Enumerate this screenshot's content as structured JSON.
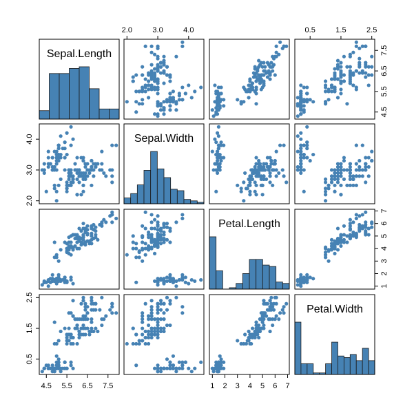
{
  "chart_data": {
    "type": "scatter",
    "plot_kind": "scatterplot-matrix",
    "point_color": "#4682B4",
    "bar_color": "#4682B4",
    "variables": [
      {
        "name": "Sepal.Length",
        "range": [
          4.3,
          7.9
        ],
        "ticks": [
          {
            "value": 4.5,
            "label": "4.5"
          },
          {
            "value": 5.5,
            "label": "5.5"
          },
          {
            "value": 6.5,
            "label": "6.5"
          },
          {
            "value": 7.5,
            "label": "7.5"
          }
        ],
        "histogram": {
          "breaks": [
            4.0,
            4.5,
            5.0,
            5.5,
            6.0,
            6.5,
            7.0,
            7.5,
            8.0
          ],
          "counts": [
            5,
            27,
            27,
            30,
            31,
            18,
            6,
            6
          ]
        }
      },
      {
        "name": "Sepal.Width",
        "range": [
          2.0,
          4.4
        ],
        "ticks": [
          {
            "value": 2.0,
            "label": "2.0"
          },
          {
            "value": 3.0,
            "label": "3.0"
          },
          {
            "value": 4.0,
            "label": "4.0"
          }
        ],
        "histogram": {
          "breaks": [
            2.0,
            2.2,
            2.4,
            2.6,
            2.8,
            3.0,
            3.2,
            3.4,
            3.6,
            3.8,
            4.0,
            4.2,
            4.4
          ],
          "counts": [
            4,
            7,
            13,
            23,
            36,
            24,
            18,
            10,
            9,
            3,
            2,
            1
          ]
        }
      },
      {
        "name": "Petal.Length",
        "range": [
          1.0,
          6.9
        ],
        "ticks": [
          {
            "value": 1,
            "label": "1"
          },
          {
            "value": 2,
            "label": "2"
          },
          {
            "value": 3,
            "label": "3"
          },
          {
            "value": 4,
            "label": "4"
          },
          {
            "value": 5,
            "label": "5"
          },
          {
            "value": 6,
            "label": "6"
          },
          {
            "value": 7,
            "label": "7"
          }
        ],
        "histogram": {
          "breaks": [
            1,
            1.5,
            2,
            2.5,
            3,
            3.5,
            4,
            4.5,
            5,
            5.5,
            6,
            6.5,
            7
          ],
          "counts": [
            37,
            13,
            0,
            1,
            4,
            11,
            21,
            21,
            17,
            16,
            5,
            4
          ]
        }
      },
      {
        "name": "Petal.Width",
        "range": [
          0.1,
          2.5
        ],
        "ticks": [
          {
            "value": 0.5,
            "label": "0.5"
          },
          {
            "value": 1.5,
            "label": "1.5"
          },
          {
            "value": 2.5,
            "label": "2.5"
          }
        ],
        "histogram": {
          "breaks": [
            0,
            0.2,
            0.4,
            0.6,
            0.8,
            1.0,
            1.2,
            1.4,
            1.6,
            1.8,
            2.0,
            2.2,
            2.4,
            2.6
          ],
          "counts": [
            34,
            7,
            7,
            1,
            1,
            7,
            21,
            12,
            11,
            13,
            9,
            17,
            9
          ]
        }
      }
    ],
    "observations": [
      [
        5.1,
        3.5,
        1.4,
        0.2
      ],
      [
        4.9,
        3.0,
        1.4,
        0.2
      ],
      [
        4.7,
        3.2,
        1.3,
        0.2
      ],
      [
        4.6,
        3.1,
        1.5,
        0.2
      ],
      [
        5.0,
        3.6,
        1.4,
        0.2
      ],
      [
        5.4,
        3.9,
        1.7,
        0.4
      ],
      [
        4.6,
        3.4,
        1.4,
        0.3
      ],
      [
        5.0,
        3.4,
        1.5,
        0.2
      ],
      [
        4.4,
        2.9,
        1.4,
        0.2
      ],
      [
        4.9,
        3.1,
        1.5,
        0.1
      ],
      [
        5.4,
        3.7,
        1.5,
        0.2
      ],
      [
        4.8,
        3.4,
        1.6,
        0.2
      ],
      [
        4.8,
        3.0,
        1.4,
        0.1
      ],
      [
        4.3,
        3.0,
        1.1,
        0.1
      ],
      [
        5.8,
        4.0,
        1.2,
        0.2
      ],
      [
        5.7,
        4.4,
        1.5,
        0.4
      ],
      [
        5.4,
        3.9,
        1.3,
        0.4
      ],
      [
        5.1,
        3.5,
        1.4,
        0.3
      ],
      [
        5.7,
        3.8,
        1.7,
        0.3
      ],
      [
        5.1,
        3.8,
        1.5,
        0.3
      ],
      [
        5.4,
        3.4,
        1.7,
        0.2
      ],
      [
        5.1,
        3.7,
        1.5,
        0.4
      ],
      [
        4.6,
        3.6,
        1.0,
        0.2
      ],
      [
        5.1,
        3.3,
        1.7,
        0.5
      ],
      [
        4.8,
        3.4,
        1.9,
        0.2
      ],
      [
        5.0,
        3.0,
        1.6,
        0.2
      ],
      [
        5.0,
        3.4,
        1.6,
        0.4
      ],
      [
        5.2,
        3.5,
        1.5,
        0.2
      ],
      [
        5.2,
        3.4,
        1.4,
        0.2
      ],
      [
        4.7,
        3.2,
        1.6,
        0.2
      ],
      [
        4.8,
        3.1,
        1.6,
        0.2
      ],
      [
        5.4,
        3.4,
        1.5,
        0.4
      ],
      [
        5.2,
        4.1,
        1.5,
        0.1
      ],
      [
        5.5,
        4.2,
        1.4,
        0.2
      ],
      [
        4.9,
        3.1,
        1.5,
        0.2
      ],
      [
        5.0,
        3.2,
        1.2,
        0.2
      ],
      [
        5.5,
        3.5,
        1.3,
        0.2
      ],
      [
        4.9,
        3.6,
        1.4,
        0.1
      ],
      [
        4.4,
        3.0,
        1.3,
        0.2
      ],
      [
        5.1,
        3.4,
        1.5,
        0.2
      ],
      [
        5.0,
        3.5,
        1.3,
        0.3
      ],
      [
        4.5,
        2.3,
        1.3,
        0.3
      ],
      [
        4.4,
        3.2,
        1.3,
        0.2
      ],
      [
        5.0,
        3.5,
        1.6,
        0.6
      ],
      [
        5.1,
        3.8,
        1.9,
        0.4
      ],
      [
        4.8,
        3.0,
        1.4,
        0.3
      ],
      [
        5.1,
        3.8,
        1.6,
        0.2
      ],
      [
        4.6,
        3.2,
        1.4,
        0.2
      ],
      [
        5.3,
        3.7,
        1.5,
        0.2
      ],
      [
        5.0,
        3.3,
        1.4,
        0.2
      ],
      [
        7.0,
        3.2,
        4.7,
        1.4
      ],
      [
        6.4,
        3.2,
        4.5,
        1.5
      ],
      [
        6.9,
        3.1,
        4.9,
        1.5
      ],
      [
        5.5,
        2.3,
        4.0,
        1.3
      ],
      [
        6.5,
        2.8,
        4.6,
        1.5
      ],
      [
        5.7,
        2.8,
        4.5,
        1.3
      ],
      [
        6.3,
        3.3,
        4.7,
        1.6
      ],
      [
        4.9,
        2.4,
        3.3,
        1.0
      ],
      [
        6.6,
        2.9,
        4.6,
        1.3
      ],
      [
        5.2,
        2.7,
        3.9,
        1.4
      ],
      [
        5.0,
        2.0,
        3.5,
        1.0
      ],
      [
        5.9,
        3.0,
        4.2,
        1.5
      ],
      [
        6.0,
        2.2,
        4.0,
        1.0
      ],
      [
        6.1,
        2.9,
        4.7,
        1.4
      ],
      [
        5.6,
        2.9,
        3.6,
        1.3
      ],
      [
        6.7,
        3.1,
        4.4,
        1.4
      ],
      [
        5.6,
        3.0,
        4.5,
        1.5
      ],
      [
        5.8,
        2.7,
        4.1,
        1.0
      ],
      [
        6.2,
        2.2,
        4.5,
        1.5
      ],
      [
        5.6,
        2.5,
        3.9,
        1.1
      ],
      [
        5.9,
        3.2,
        4.8,
        1.8
      ],
      [
        6.1,
        2.8,
        4.0,
        1.3
      ],
      [
        6.3,
        2.5,
        4.9,
        1.5
      ],
      [
        6.1,
        2.8,
        4.7,
        1.2
      ],
      [
        6.4,
        2.9,
        4.3,
        1.3
      ],
      [
        6.6,
        3.0,
        4.4,
        1.4
      ],
      [
        6.8,
        2.8,
        4.8,
        1.4
      ],
      [
        6.7,
        3.0,
        5.0,
        1.7
      ],
      [
        6.0,
        2.9,
        4.5,
        1.5
      ],
      [
        5.7,
        2.6,
        3.5,
        1.0
      ],
      [
        5.5,
        2.4,
        3.8,
        1.1
      ],
      [
        5.5,
        2.4,
        3.7,
        1.0
      ],
      [
        5.8,
        2.7,
        3.9,
        1.2
      ],
      [
        6.0,
        2.7,
        5.1,
        1.6
      ],
      [
        5.4,
        3.0,
        4.5,
        1.5
      ],
      [
        6.0,
        3.4,
        4.5,
        1.6
      ],
      [
        6.7,
        3.1,
        4.7,
        1.5
      ],
      [
        6.3,
        2.3,
        4.4,
        1.3
      ],
      [
        5.6,
        3.0,
        4.1,
        1.3
      ],
      [
        5.5,
        2.5,
        4.0,
        1.3
      ],
      [
        5.5,
        2.6,
        4.4,
        1.2
      ],
      [
        6.1,
        3.0,
        4.6,
        1.4
      ],
      [
        5.8,
        2.6,
        4.0,
        1.2
      ],
      [
        5.0,
        2.3,
        3.3,
        1.0
      ],
      [
        5.6,
        2.7,
        4.2,
        1.3
      ],
      [
        5.7,
        3.0,
        4.2,
        1.2
      ],
      [
        5.7,
        2.9,
        4.2,
        1.3
      ],
      [
        6.2,
        2.9,
        4.3,
        1.3
      ],
      [
        5.1,
        2.5,
        3.0,
        1.1
      ],
      [
        5.7,
        2.8,
        4.1,
        1.3
      ],
      [
        6.3,
        3.3,
        6.0,
        2.5
      ],
      [
        5.8,
        2.7,
        5.1,
        1.9
      ],
      [
        7.1,
        3.0,
        5.9,
        2.1
      ],
      [
        6.3,
        2.9,
        5.6,
        1.8
      ],
      [
        6.5,
        3.0,
        5.8,
        2.2
      ],
      [
        7.6,
        3.0,
        6.6,
        2.1
      ],
      [
        4.9,
        2.5,
        4.5,
        1.7
      ],
      [
        7.3,
        2.9,
        6.3,
        1.8
      ],
      [
        6.7,
        2.5,
        5.8,
        1.8
      ],
      [
        7.2,
        3.6,
        6.1,
        2.5
      ],
      [
        6.5,
        3.2,
        5.1,
        2.0
      ],
      [
        6.4,
        2.7,
        5.3,
        1.9
      ],
      [
        6.8,
        3.0,
        5.5,
        2.1
      ],
      [
        5.7,
        2.5,
        5.0,
        2.0
      ],
      [
        5.8,
        2.8,
        5.1,
        2.4
      ],
      [
        6.4,
        3.2,
        5.3,
        2.3
      ],
      [
        6.5,
        3.0,
        5.5,
        1.8
      ],
      [
        7.7,
        3.8,
        6.7,
        2.2
      ],
      [
        7.7,
        2.6,
        6.9,
        2.3
      ],
      [
        6.0,
        2.2,
        5.0,
        1.5
      ],
      [
        6.9,
        3.2,
        5.7,
        2.3
      ],
      [
        5.6,
        2.8,
        4.9,
        2.0
      ],
      [
        7.7,
        2.8,
        6.7,
        2.0
      ],
      [
        6.3,
        2.7,
        4.9,
        1.8
      ],
      [
        6.7,
        3.3,
        5.7,
        2.1
      ],
      [
        7.2,
        3.2,
        6.0,
        1.8
      ],
      [
        6.2,
        2.8,
        4.8,
        1.8
      ],
      [
        6.1,
        3.0,
        4.9,
        1.8
      ],
      [
        6.4,
        2.8,
        5.6,
        2.1
      ],
      [
        7.2,
        3.0,
        5.8,
        1.6
      ],
      [
        7.4,
        2.8,
        6.1,
        1.9
      ],
      [
        7.9,
        3.8,
        6.4,
        2.0
      ],
      [
        6.4,
        2.8,
        5.6,
        2.2
      ],
      [
        6.3,
        2.8,
        5.1,
        1.5
      ],
      [
        6.1,
        2.6,
        5.6,
        1.4
      ],
      [
        7.7,
        3.0,
        6.1,
        2.3
      ],
      [
        6.3,
        3.4,
        5.6,
        2.4
      ],
      [
        6.4,
        3.1,
        5.5,
        1.8
      ],
      [
        6.0,
        3.0,
        4.8,
        1.8
      ],
      [
        6.9,
        3.1,
        5.4,
        2.1
      ],
      [
        6.7,
        3.1,
        5.6,
        2.4
      ],
      [
        6.9,
        3.1,
        5.1,
        2.3
      ],
      [
        5.8,
        2.7,
        5.1,
        1.9
      ],
      [
        6.8,
        3.2,
        5.9,
        2.3
      ],
      [
        6.7,
        3.3,
        5.7,
        2.5
      ],
      [
        6.7,
        3.0,
        5.2,
        2.3
      ],
      [
        6.3,
        2.5,
        5.0,
        1.9
      ],
      [
        6.5,
        3.0,
        5.2,
        2.0
      ],
      [
        6.2,
        3.4,
        5.4,
        2.3
      ],
      [
        5.9,
        3.0,
        5.1,
        1.8
      ]
    ]
  }
}
